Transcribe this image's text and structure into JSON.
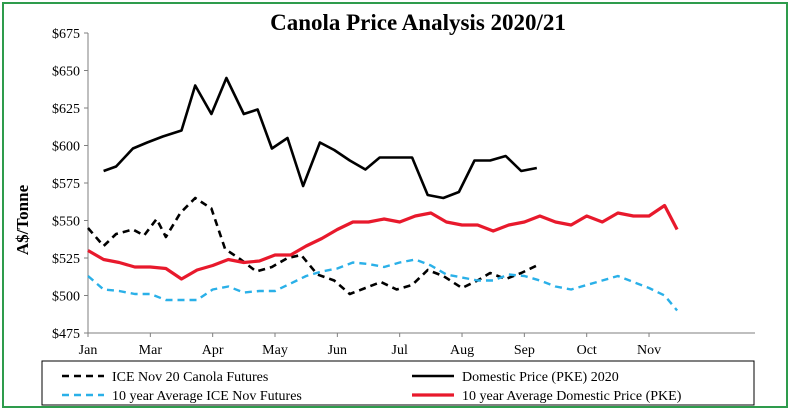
{
  "chart_data": {
    "type": "line",
    "title": "Canola Price Analysis 2020/21",
    "ylabel": "A$/Tonne",
    "xlabel": "",
    "ylim": [
      475,
      675
    ],
    "xlim": [
      0,
      10.7
    ],
    "yticks": [
      "$475",
      "$500",
      "$525",
      "$550",
      "$575",
      "$600",
      "$625",
      "$650",
      "$675"
    ],
    "ytick_values": [
      475,
      500,
      525,
      550,
      575,
      600,
      625,
      650,
      675
    ],
    "months": [
      "Jan",
      "Mar",
      "Apr",
      "May",
      "Jun",
      "Jul",
      "Aug",
      "Sep",
      "Oct",
      "Nov"
    ],
    "month_positions": [
      0,
      1,
      2,
      3,
      4,
      5,
      6,
      7,
      8,
      9
    ],
    "grid": false,
    "legend_position": "bottom",
    "series": [
      {
        "name": "ICE Nov 20 Canola Futures",
        "color": "#000000",
        "style": "dashed",
        "x": [
          0,
          0.25,
          0.45,
          0.72,
          0.9,
          1.1,
          1.25,
          1.48,
          1.72,
          1.98,
          2.2,
          2.45,
          2.7,
          2.95,
          3.2,
          3.42,
          3.68,
          3.95,
          4.2,
          4.45,
          4.7,
          4.95,
          5.2,
          5.45,
          5.7,
          6.0,
          6.25,
          6.45,
          6.7,
          6.95,
          7.2
        ],
        "y": [
          545,
          533,
          541,
          544,
          540,
          551,
          539,
          555,
          565,
          558,
          531,
          524,
          516,
          519,
          525,
          527,
          514,
          510,
          501,
          505,
          509,
          504,
          507,
          517,
          513,
          505,
          510,
          515,
          511,
          515,
          520
        ]
      },
      {
        "name": "Domestic Price (PKE) 2020",
        "color": "#000000",
        "style": "solid",
        "x": [
          0.25,
          0.45,
          0.72,
          0.95,
          1.2,
          1.5,
          1.72,
          1.98,
          2.22,
          2.5,
          2.72,
          2.95,
          3.2,
          3.45,
          3.72,
          3.95,
          4.2,
          4.45,
          4.68,
          4.95,
          5.2,
          5.45,
          5.7,
          5.95,
          6.2,
          6.45,
          6.7,
          6.95,
          7.2
        ],
        "y": [
          583,
          586,
          598,
          602,
          606,
          610,
          640,
          621,
          645,
          621,
          624,
          598,
          605,
          573,
          602,
          597,
          590,
          584,
          592,
          592,
          592,
          567,
          565,
          569,
          590,
          590,
          593,
          583,
          585
        ]
      },
      {
        "name": "10 year Average ICE Nov Futures",
        "color": "#2ab0e8",
        "style": "dashed",
        "x": [
          0,
          0.25,
          0.5,
          0.75,
          1.0,
          1.25,
          1.5,
          1.75,
          2.0,
          2.25,
          2.5,
          2.75,
          3.0,
          3.25,
          3.5,
          3.75,
          4.0,
          4.25,
          4.5,
          4.75,
          5.0,
          5.25,
          5.5,
          5.75,
          6.0,
          6.25,
          6.5,
          6.75,
          7.0,
          7.25,
          7.5,
          7.75,
          8.0,
          8.25,
          8.5,
          8.75,
          9.0,
          9.25,
          9.45
        ],
        "y": [
          513,
          504,
          503,
          501,
          501,
          497,
          497,
          497,
          504,
          506,
          502,
          503,
          503,
          508,
          513,
          516,
          518,
          522,
          521,
          519,
          522,
          524,
          520,
          514,
          512,
          510,
          510,
          514,
          513,
          510,
          506,
          504,
          507,
          510,
          513,
          509,
          505,
          500,
          490
        ]
      },
      {
        "name": "10 year Average Domestic Price (PKE)",
        "color": "#e8192c",
        "style": "solid",
        "x": [
          0,
          0.25,
          0.5,
          0.75,
          1.0,
          1.25,
          1.5,
          1.75,
          2.0,
          2.25,
          2.5,
          2.75,
          3.0,
          3.25,
          3.5,
          3.75,
          4.0,
          4.25,
          4.5,
          4.75,
          5.0,
          5.25,
          5.5,
          5.75,
          6.0,
          6.25,
          6.5,
          6.75,
          7.0,
          7.25,
          7.5,
          7.75,
          8.0,
          8.25,
          8.5,
          8.75,
          9.0,
          9.25,
          9.45
        ],
        "y": [
          530,
          524,
          522,
          519,
          519,
          518,
          511,
          517,
          520,
          524,
          522,
          523,
          527,
          527,
          533,
          538,
          544,
          549,
          549,
          551,
          549,
          553,
          555,
          549,
          547,
          547,
          543,
          547,
          549,
          553,
          549,
          547,
          553,
          549,
          555,
          553,
          553,
          560,
          544
        ]
      }
    ]
  }
}
